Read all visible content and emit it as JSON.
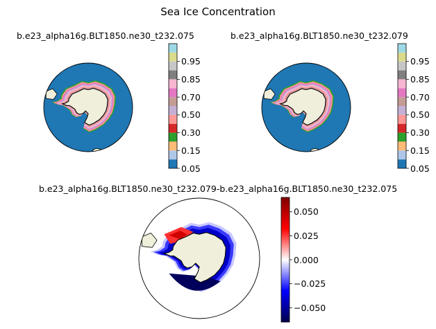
{
  "figure": {
    "suptitle": "Sea Ice Concentration"
  },
  "colors": {
    "ocean": "#1f77b4",
    "land": "#efefdb",
    "coast": "#000000",
    "diff_pos": "#ff0000",
    "diff_neg": "#0000ff",
    "diff_zero": "#ffffff"
  },
  "chart_data": [
    {
      "type": "heatmap",
      "projection": "south-polar-stereographic",
      "title": "b.e23_alpha16g.BLT1850.ne30_t232.075",
      "colorbar": {
        "kind": "discrete",
        "levels": [
          0.05,
          0.1,
          0.15,
          0.2,
          0.3,
          0.4,
          0.5,
          0.6,
          0.7,
          0.8,
          0.85,
          0.9,
          0.95,
          0.99
        ],
        "colors": [
          "#1f77b4",
          "#aec7e8",
          "#ffbb78",
          "#2ca02c",
          "#d62728",
          "#ff9896",
          "#c5b0d5",
          "#c49c94",
          "#e377c2",
          "#f7b6d2",
          "#7f7f7f",
          "#c7c7c7",
          "#dbdb8d",
          "#9edae5"
        ],
        "tick_labels": [
          "0.05",
          "0.15",
          "0.30",
          "0.50",
          "0.70",
          "0.85",
          "0.95"
        ]
      }
    },
    {
      "type": "heatmap",
      "projection": "south-polar-stereographic",
      "title": "b.e23_alpha16g.BLT1850.ne30_t232.079",
      "colorbar": {
        "kind": "discrete",
        "levels": [
          0.05,
          0.1,
          0.15,
          0.2,
          0.3,
          0.4,
          0.5,
          0.6,
          0.7,
          0.8,
          0.85,
          0.9,
          0.95,
          0.99
        ],
        "colors": [
          "#1f77b4",
          "#aec7e8",
          "#ffbb78",
          "#2ca02c",
          "#d62728",
          "#ff9896",
          "#c5b0d5",
          "#c49c94",
          "#e377c2",
          "#f7b6d2",
          "#7f7f7f",
          "#c7c7c7",
          "#dbdb8d",
          "#9edae5"
        ],
        "tick_labels": [
          "0.05",
          "0.15",
          "0.30",
          "0.50",
          "0.70",
          "0.85",
          "0.95"
        ]
      }
    },
    {
      "type": "heatmap",
      "projection": "south-polar-stereographic",
      "title": "b.e23_alpha16g.BLT1850.ne30_t232.079-b.e23_alpha16g.BLT1850.ne30_t232.075",
      "colorbar": {
        "kind": "continuous",
        "cmap": "seismic",
        "range": [
          -0.065,
          0.065
        ],
        "ticks": [
          -0.05,
          -0.025,
          0.0,
          0.025,
          0.05
        ],
        "tick_labels": [
          "−0.050",
          "−0.025",
          "0.000",
          "0.025",
          "0.050"
        ]
      }
    }
  ]
}
